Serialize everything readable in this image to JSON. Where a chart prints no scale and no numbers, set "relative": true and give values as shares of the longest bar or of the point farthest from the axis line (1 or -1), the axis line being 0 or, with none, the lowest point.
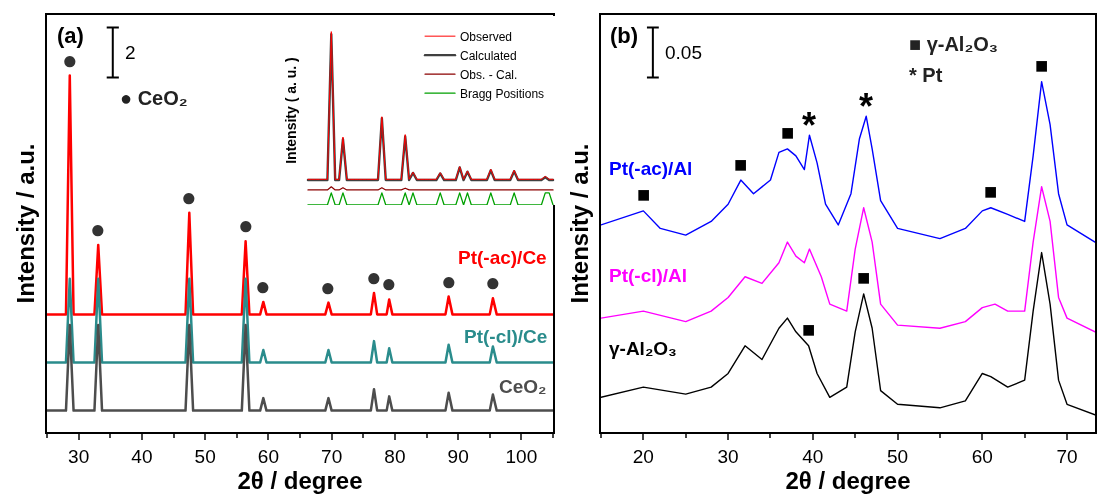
{
  "chart_data": [
    {
      "type": "line",
      "relative": true,
      "xlabel": "2θ / degree",
      "ylabel": "Intensity / a.u.",
      "xlim": [
        25,
        105
      ],
      "xticks": [
        30,
        40,
        50,
        60,
        70,
        80,
        90,
        100
      ],
      "tick_labels": "x",
      "annotations": [
        "(a)",
        "2",
        "● CeO₂",
        {
          "text": "●",
          "x": 28.6,
          "y": 1.0
        },
        {
          "text": "●",
          "x": 33.1,
          "y": 0.525
        },
        {
          "text": "●",
          "x": 47.5,
          "y": 0.615
        },
        {
          "text": "●",
          "x": 56.4,
          "y": 0.535
        },
        {
          "text": "●",
          "x": 59.2,
          "y": 0.365
        },
        {
          "text": "●",
          "x": 69.5,
          "y": 0.363
        },
        {
          "text": "●",
          "x": 76.7,
          "y": 0.39
        },
        {
          "text": "●",
          "x": 79.1,
          "y": 0.372
        },
        {
          "text": "●",
          "x": 88.5,
          "y": 0.38
        },
        {
          "text": "●",
          "x": 95.5,
          "y": 0.375
        }
      ],
      "x": [
        25,
        28.0,
        28.6,
        29.2,
        32.5,
        33.1,
        33.7,
        46.9,
        47.5,
        48.1,
        55.8,
        56.4,
        57.0,
        58.7,
        59.2,
        59.7,
        69.0,
        69.5,
        70.0,
        76.2,
        76.7,
        77.2,
        78.7,
        79.1,
        79.6,
        88.0,
        88.5,
        89.1,
        95.0,
        95.5,
        96.1,
        105
      ],
      "series": [
        {
          "name": "Pt(-ac)/Ce",
          "color": "#ff0000",
          "values": [
            0.33,
            0.33,
            1.0,
            0.33,
            0.33,
            0.525,
            0.33,
            0.33,
            0.615,
            0.33,
            0.33,
            0.535,
            0.33,
            0.33,
            0.365,
            0.33,
            0.33,
            0.363,
            0.33,
            0.33,
            0.39,
            0.33,
            0.33,
            0.372,
            0.33,
            0.33,
            0.38,
            0.33,
            0.33,
            0.375,
            0.33,
            0.33
          ]
        },
        {
          "name": "Pt(-cl)/Ce",
          "color": "#2a8c8c",
          "values": [
            0.195,
            0.195,
            0.43,
            0.195,
            0.195,
            0.43,
            0.195,
            0.195,
            0.43,
            0.195,
            0.195,
            0.43,
            0.195,
            0.195,
            0.23,
            0.195,
            0.195,
            0.23,
            0.195,
            0.195,
            0.255,
            0.195,
            0.195,
            0.235,
            0.195,
            0.195,
            0.245,
            0.195,
            0.195,
            0.24,
            0.195,
            0.195
          ]
        },
        {
          "name": "CeO₂",
          "color": "#4d4d4d",
          "values": [
            0.06,
            0.06,
            0.3,
            0.06,
            0.06,
            0.3,
            0.06,
            0.06,
            0.3,
            0.06,
            0.06,
            0.3,
            0.06,
            0.06,
            0.095,
            0.06,
            0.06,
            0.095,
            0.06,
            0.06,
            0.12,
            0.06,
            0.06,
            0.1,
            0.06,
            0.06,
            0.11,
            0.06,
            0.06,
            0.105,
            0.06,
            0.06
          ]
        }
      ]
    },
    {
      "type": "line",
      "relative": true,
      "ylabel": "Intensity ( a. u. )",
      "tick_labels": false,
      "legend": "top right",
      "categories": [
        null,
        null,
        null,
        null,
        null,
        null,
        null,
        null,
        null,
        null,
        null,
        null,
        null,
        null,
        null,
        null,
        null,
        null,
        null,
        null,
        null,
        null,
        null,
        null,
        null,
        null,
        null,
        null,
        null,
        null,
        null,
        null,
        null,
        null,
        null,
        null,
        null,
        null,
        null,
        null,
        null,
        null,
        null,
        null,
        null,
        null,
        null,
        null,
        null,
        null,
        null,
        null,
        null,
        null,
        null,
        null,
        null,
        null,
        null,
        null,
        null,
        null,
        null,
        null
      ],
      "series": [
        {
          "name": "Observed",
          "color": "#ff0000",
          "values": [
            0.148,
            0.148,
            0.148,
            0.148,
            0.148,
            0.148,
            1.0,
            0.148,
            0.148,
            0.392,
            0.148,
            0.148,
            0.148,
            0.148,
            0.148,
            0.148,
            0.148,
            0.148,
            0.148,
            0.509,
            0.148,
            0.148,
            0.148,
            0.148,
            0.148,
            0.406,
            0.148,
            0.189,
            0.148,
            0.148,
            0.148,
            0.148,
            0.148,
            0.148,
            0.186,
            0.148,
            0.148,
            0.148,
            0.148,
            0.221,
            0.148,
            0.196,
            0.148,
            0.148,
            0.148,
            0.148,
            0.148,
            0.206,
            0.148,
            0.148,
            0.148,
            0.148,
            0.148,
            0.2,
            0.148,
            0.148,
            0.148,
            0.148,
            0.148,
            0.148,
            0.148,
            0.165,
            0.148,
            0.148
          ]
        },
        {
          "name": "Calculated",
          "color": "#404040",
          "values": [
            0.144,
            0.144,
            0.144,
            0.144,
            0.144,
            0.144,
            0.985,
            0.144,
            0.144,
            0.38,
            0.144,
            0.144,
            0.144,
            0.144,
            0.144,
            0.144,
            0.144,
            0.144,
            0.144,
            0.5,
            0.144,
            0.144,
            0.144,
            0.144,
            0.144,
            0.395,
            0.144,
            0.185,
            0.144,
            0.144,
            0.144,
            0.144,
            0.144,
            0.144,
            0.182,
            0.144,
            0.144,
            0.144,
            0.144,
            0.217,
            0.144,
            0.192,
            0.144,
            0.144,
            0.144,
            0.144,
            0.144,
            0.2,
            0.144,
            0.144,
            0.144,
            0.144,
            0.144,
            0.195,
            0.144,
            0.144,
            0.144,
            0.144,
            0.144,
            0.144,
            0.144,
            0.16,
            0.144,
            0.144
          ]
        },
        {
          "name": "Obs. - Cal.",
          "color": "#8b0000",
          "values": [
            0.087,
            0.087,
            0.087,
            0.087,
            0.087,
            0.087,
            0.105,
            0.087,
            0.087,
            0.1,
            0.087,
            0.087,
            0.087,
            0.087,
            0.087,
            0.087,
            0.087,
            0.087,
            0.087,
            0.1,
            0.087,
            0.087,
            0.087,
            0.087,
            0.087,
            0.097,
            0.087,
            0.087,
            0.087,
            0.087,
            0.087,
            0.087,
            0.087,
            0.087,
            0.087,
            0.087,
            0.087,
            0.087,
            0.087,
            0.087,
            0.087,
            0.087,
            0.087,
            0.087,
            0.087,
            0.087,
            0.087,
            0.087,
            0.087,
            0.087,
            0.087,
            0.087,
            0.087,
            0.087,
            0.087,
            0.087,
            0.087,
            0.087,
            0.087,
            0.087,
            0.087,
            0.087,
            0.087,
            0.087
          ]
        },
        {
          "name": "Bragg Positions",
          "color": "#00a000",
          "values": [
            0,
            0,
            0,
            0,
            0,
            0,
            0.07,
            0,
            0,
            0.07,
            0,
            0,
            0,
            0,
            0,
            0,
            0,
            0,
            0,
            0.07,
            0,
            0,
            0,
            0,
            0,
            0.07,
            0,
            0.07,
            0,
            0,
            0,
            0,
            0,
            0,
            0.07,
            0,
            0,
            0,
            0,
            0.07,
            0,
            0.07,
            0,
            0,
            0,
            0,
            0,
            0.07,
            0,
            0,
            0,
            0,
            0,
            0.07,
            0,
            0,
            0,
            0,
            0,
            0,
            0,
            0.07,
            0.07,
            0
          ]
        }
      ]
    },
    {
      "type": "line",
      "relative": true,
      "xlabel": "2θ / degree",
      "ylabel": "Intensity / a.u.",
      "xlim": [
        15,
        73.3
      ],
      "xticks": [
        20,
        30,
        40,
        50,
        60,
        70
      ],
      "tick_labels": "x",
      "annotations": [
        "(b)",
        "0.05",
        "■ γ-Al₂O₃",
        "* Pt",
        {
          "text": "■",
          "x": 20,
          "y": 0.631
        },
        {
          "text": "■",
          "x": 31.5,
          "y": 0.719
        },
        {
          "text": "■",
          "x": 37,
          "y": 0.808
        },
        {
          "text": "■",
          "x": 39.5,
          "y": 0.246
        },
        {
          "text": "■",
          "x": 46,
          "y": 0.394
        },
        {
          "text": "■",
          "x": 61,
          "y": 0.64
        },
        {
          "text": "■",
          "x": 67,
          "y": 1.0
        },
        {
          "text": "*",
          "x": 39.6,
          "y": 0.847
        },
        {
          "text": "*",
          "x": 46.3,
          "y": 0.901
        }
      ],
      "x": [
        15,
        20,
        22,
        25,
        28,
        30,
        31.5,
        33,
        35,
        36,
        37,
        38,
        39,
        39.6,
        40.5,
        41.5,
        43,
        44.5,
        45.5,
        46.3,
        47,
        48,
        50,
        55,
        58,
        60,
        61,
        63,
        65,
        66,
        67,
        68,
        69,
        70,
        73.3
      ],
      "series": [
        {
          "name": "Pt(-ac)/Al",
          "color": "#0000ff",
          "values": [
            0.591,
            0.631,
            0.581,
            0.562,
            0.601,
            0.65,
            0.719,
            0.68,
            0.719,
            0.798,
            0.808,
            0.788,
            0.749,
            0.847,
            0.768,
            0.65,
            0.591,
            0.68,
            0.837,
            0.901,
            0.808,
            0.66,
            0.581,
            0.552,
            0.581,
            0.631,
            0.64,
            0.621,
            0.601,
            0.788,
            1.0,
            0.877,
            0.68,
            0.591,
            0.542
          ]
        },
        {
          "name": "Pt(-cl)/Al",
          "color": "#ff00ff",
          "x": [
            15,
            20,
            25,
            28,
            30,
            32,
            34,
            36,
            37,
            38,
            39,
            39.6,
            41,
            42,
            44,
            45,
            46,
            47,
            48,
            50,
            55,
            58,
            60,
            61.5,
            63,
            65,
            66,
            67,
            68,
            69,
            70,
            73.3
          ],
          "values": [
            0.325,
            0.345,
            0.315,
            0.345,
            0.384,
            0.443,
            0.424,
            0.483,
            0.542,
            0.502,
            0.483,
            0.522,
            0.443,
            0.365,
            0.345,
            0.522,
            0.64,
            0.542,
            0.365,
            0.305,
            0.296,
            0.315,
            0.355,
            0.365,
            0.345,
            0.345,
            0.542,
            0.7,
            0.601,
            0.384,
            0.325,
            0.286
          ]
        },
        {
          "name": "γ-Al₂O₃",
          "color": "#000000",
          "x": [
            15,
            20,
            25,
            28,
            30,
            32,
            34,
            36,
            37,
            38,
            39.5,
            40.5,
            42,
            44,
            45,
            46,
            47,
            48,
            50,
            55,
            58,
            60,
            61,
            63,
            65,
            66,
            67,
            68,
            69,
            70,
            73.3
          ],
          "values": [
            0.099,
            0.128,
            0.108,
            0.128,
            0.167,
            0.246,
            0.207,
            0.296,
            0.325,
            0.286,
            0.246,
            0.167,
            0.099,
            0.128,
            0.286,
            0.394,
            0.296,
            0.118,
            0.079,
            0.069,
            0.089,
            0.167,
            0.158,
            0.128,
            0.148,
            0.345,
            0.512,
            0.365,
            0.148,
            0.079,
            0.049
          ]
        }
      ]
    }
  ]
}
